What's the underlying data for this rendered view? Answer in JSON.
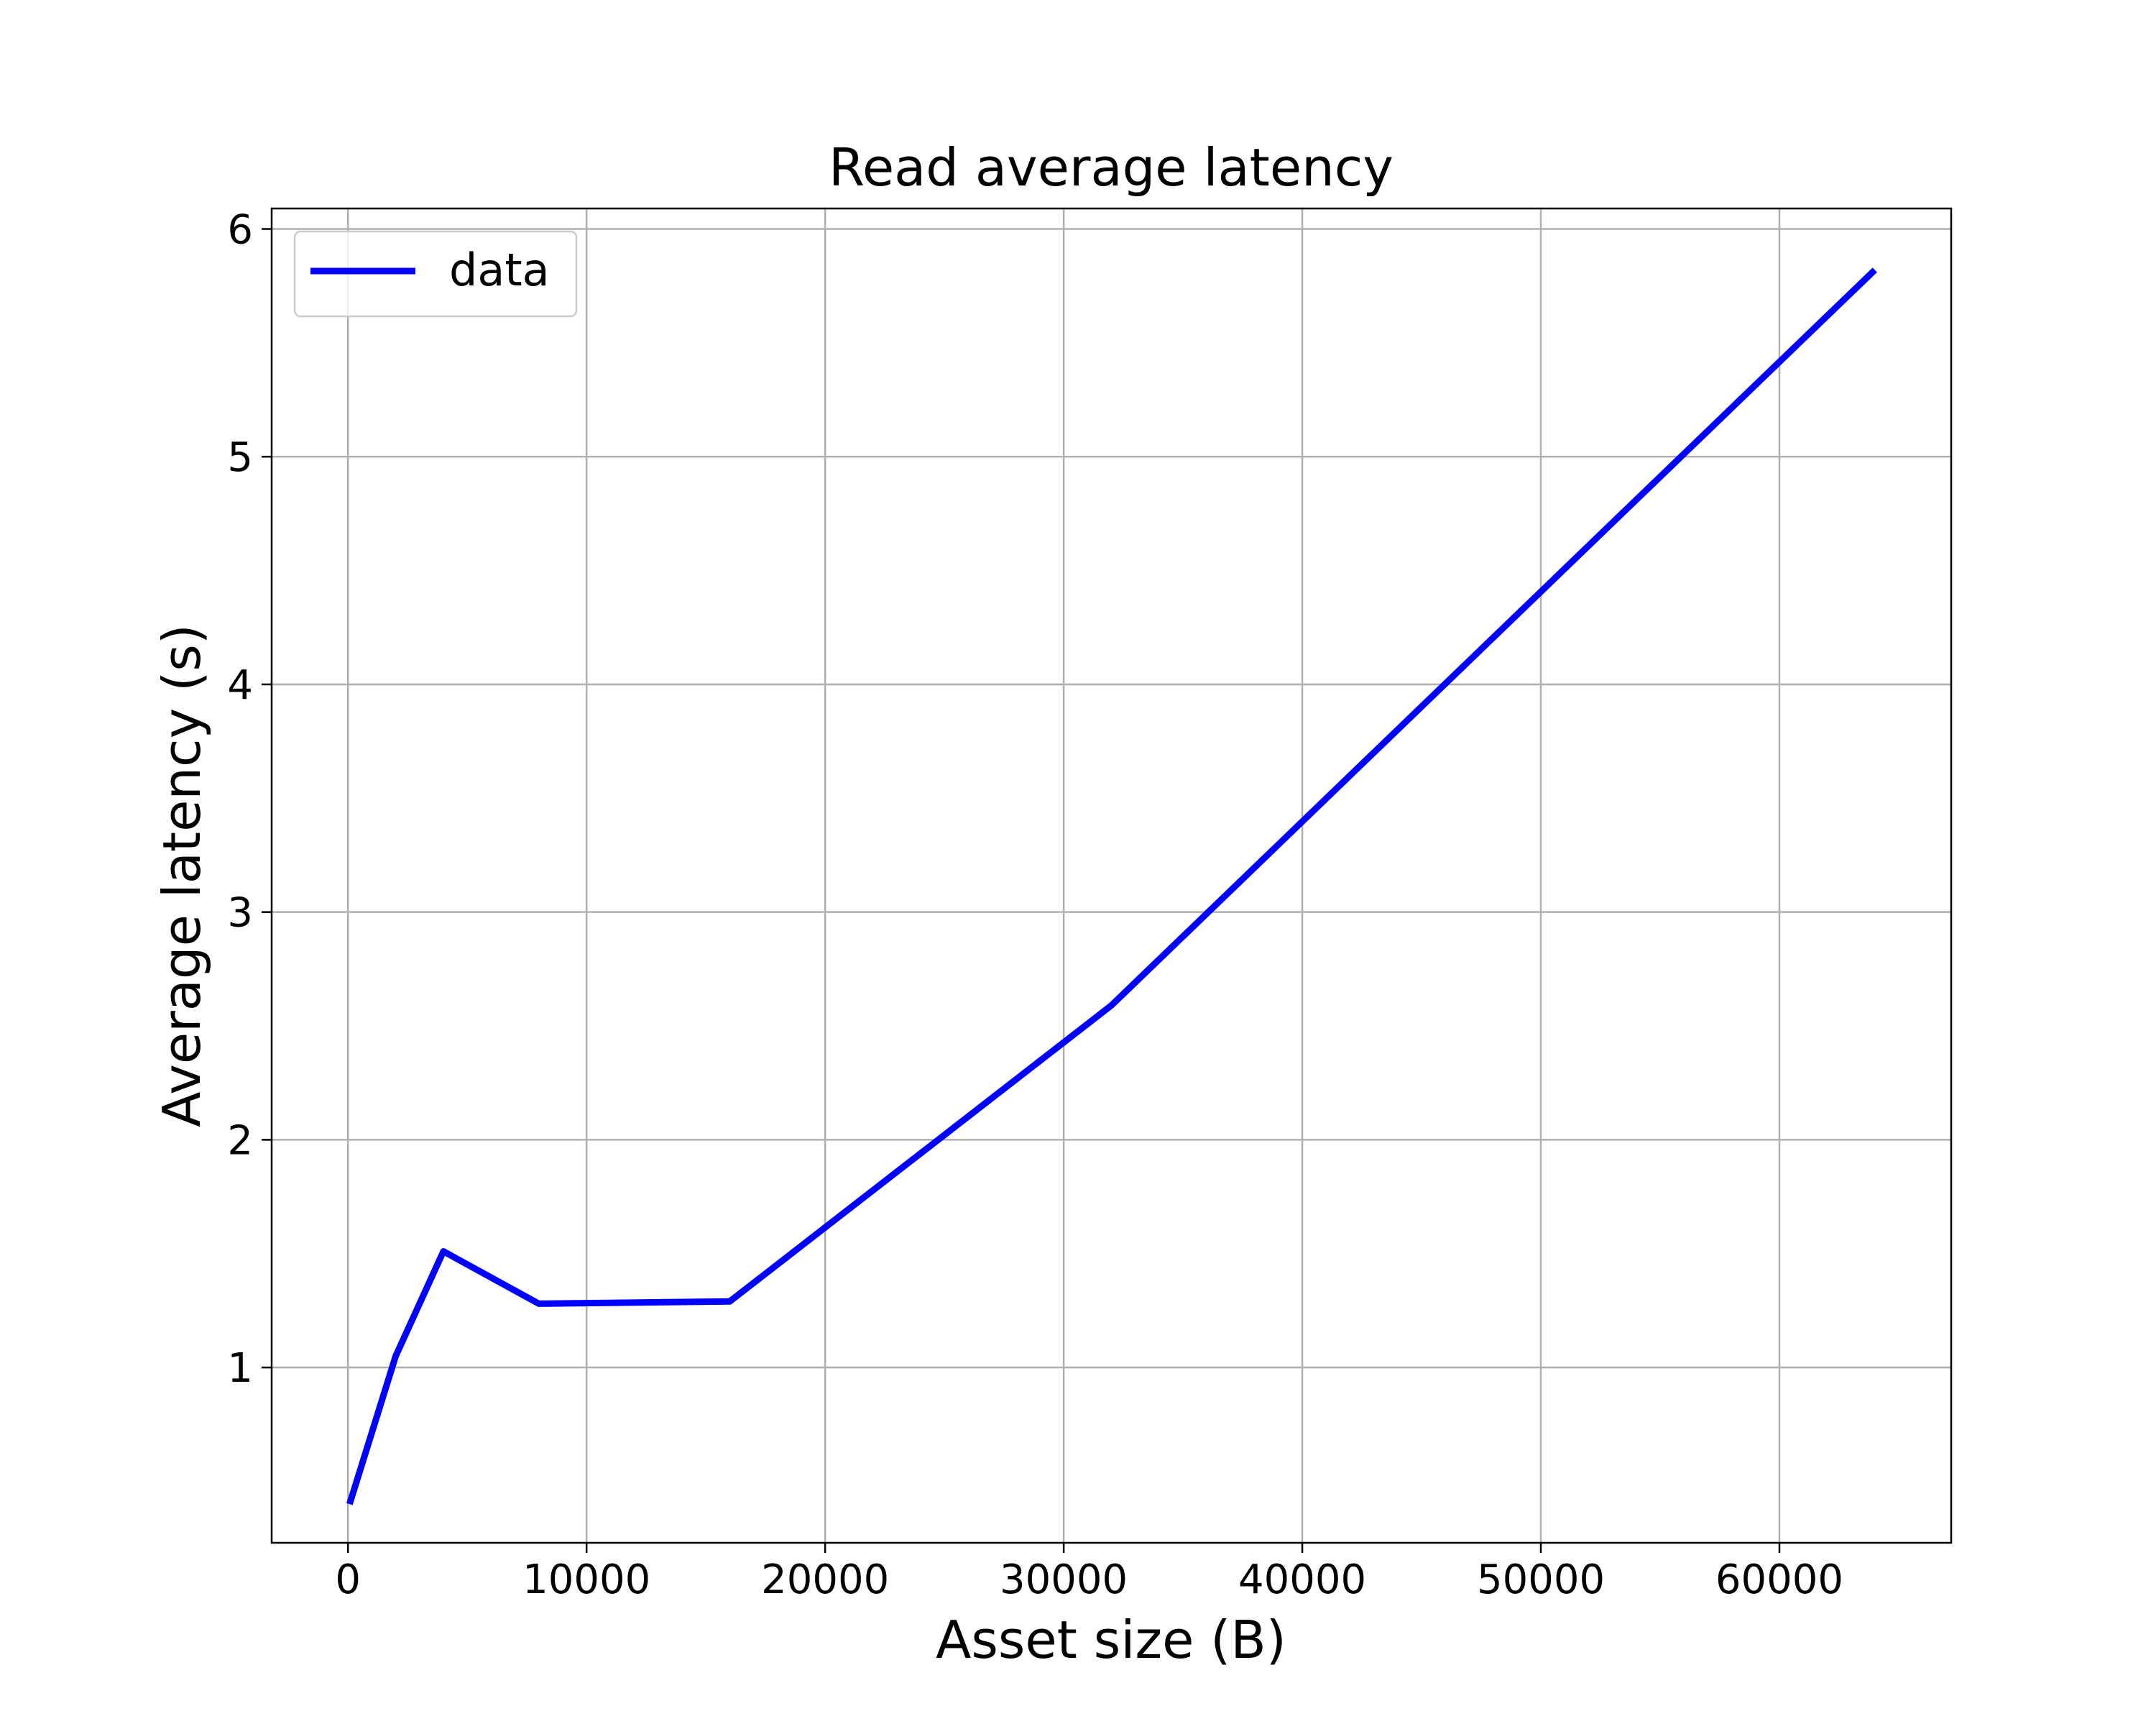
{
  "chart_data": {
    "type": "line",
    "title": "Read average latency",
    "xlabel": "Asset size (B)",
    "ylabel": "Average latency (s)",
    "xlim": [
      -3200,
      67200
    ],
    "ylim": [
      0.23,
      6.09
    ],
    "xticks": [
      0,
      10000,
      20000,
      30000,
      40000,
      50000,
      60000
    ],
    "xtick_labels": [
      "0",
      "10000",
      "20000",
      "30000",
      "40000",
      "50000",
      "60000"
    ],
    "yticks": [
      1,
      2,
      3,
      4,
      5,
      6
    ],
    "ytick_labels": [
      "1",
      "2",
      "3",
      "4",
      "5",
      "6"
    ],
    "grid": true,
    "legend_position": "top-left",
    "series": [
      {
        "name": "data",
        "color": "#0000ff",
        "x": [
          64,
          2000,
          4000,
          8000,
          16000,
          32000,
          64000
        ],
        "y": [
          0.4,
          1.05,
          1.51,
          1.28,
          1.29,
          2.59,
          5.82
        ]
      }
    ]
  }
}
